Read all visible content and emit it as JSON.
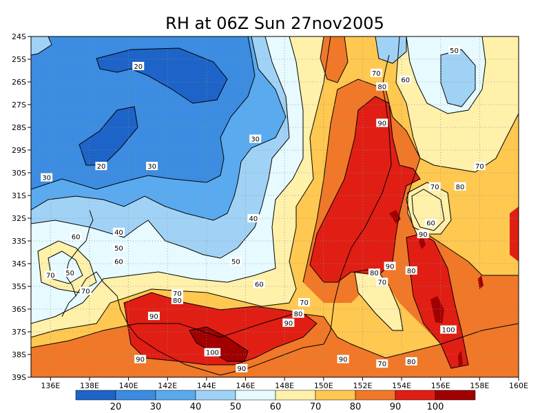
{
  "chart_data": {
    "type": "heatmap",
    "title": "RH at 06Z Sun 27nov2005",
    "xlabel": "",
    "ylabel": "",
    "x_ticks": [
      "136E",
      "138E",
      "140E",
      "142E",
      "144E",
      "146E",
      "148E",
      "150E",
      "152E",
      "154E",
      "156E",
      "158E",
      "160E"
    ],
    "y_ticks": [
      "24S",
      "25S",
      "26S",
      "27S",
      "28S",
      "29S",
      "30S",
      "31S",
      "32S",
      "33S",
      "34S",
      "35S",
      "36S",
      "37S",
      "38S",
      "39S"
    ],
    "xlim": [
      135,
      160
    ],
    "ylim": [
      -39,
      -24
    ],
    "grid": true,
    "colorbar": {
      "levels": [
        "20",
        "30",
        "40",
        "50",
        "60",
        "70",
        "80",
        "90",
        "100"
      ],
      "colors": [
        "#1e64c8",
        "#3c8ce1",
        "#5aaaf0",
        "#a0d2f5",
        "#e6faff",
        "#fff0aa",
        "#ffc850",
        "#f07828",
        "#e11e14",
        "#a00000"
      ]
    },
    "contour_labels": [
      {
        "text": "20",
        "lon": 140.5,
        "lat": -25.3
      },
      {
        "text": "20",
        "lon": 138.6,
        "lat": -29.7
      },
      {
        "text": "30",
        "lon": 135.8,
        "lat": -30.2
      },
      {
        "text": "30",
        "lon": 141.2,
        "lat": -29.7
      },
      {
        "text": "30",
        "lon": 146.5,
        "lat": -28.5
      },
      {
        "text": "40",
        "lon": 146.4,
        "lat": -32.0
      },
      {
        "text": "40",
        "lon": 139.5,
        "lat": -32.6
      },
      {
        "text": "50",
        "lon": 139.5,
        "lat": -33.3
      },
      {
        "text": "50",
        "lon": 145.5,
        "lat": -33.9
      },
      {
        "text": "50",
        "lon": 137.0,
        "lat": -34.4
      },
      {
        "text": "50",
        "lon": 156.7,
        "lat": -24.6
      },
      {
        "text": "60",
        "lon": 137.3,
        "lat": -32.8
      },
      {
        "text": "60",
        "lon": 139.5,
        "lat": -33.9
      },
      {
        "text": "60",
        "lon": 146.7,
        "lat": -34.9
      },
      {
        "text": "60",
        "lon": 154.2,
        "lat": -25.9
      },
      {
        "text": "60",
        "lon": 155.5,
        "lat": -32.2
      },
      {
        "text": "70",
        "lon": 136.0,
        "lat": -34.5
      },
      {
        "text": "70",
        "lon": 137.8,
        "lat": -35.2
      },
      {
        "text": "70",
        "lon": 142.5,
        "lat": -35.3
      },
      {
        "text": "70",
        "lon": 149.0,
        "lat": -35.7
      },
      {
        "text": "70",
        "lon": 152.7,
        "lat": -25.6
      },
      {
        "text": "70",
        "lon": 158.0,
        "lat": -29.7
      },
      {
        "text": "70",
        "lon": 155.7,
        "lat": -30.6
      },
      {
        "text": "70",
        "lon": 153.0,
        "lat": -34.8
      },
      {
        "text": "70",
        "lon": 153.0,
        "lat": -38.4
      },
      {
        "text": "80",
        "lon": 142.5,
        "lat": -35.6
      },
      {
        "text": "80",
        "lon": 148.7,
        "lat": -36.2
      },
      {
        "text": "80",
        "lon": 153.0,
        "lat": -26.2
      },
      {
        "text": "80",
        "lon": 157.0,
        "lat": -30.6
      },
      {
        "text": "80",
        "lon": 152.6,
        "lat": -34.4
      },
      {
        "text": "80",
        "lon": 154.5,
        "lat": -34.3
      },
      {
        "text": "80",
        "lon": 154.5,
        "lat": -38.3
      },
      {
        "text": "90",
        "lon": 141.3,
        "lat": -36.3
      },
      {
        "text": "90",
        "lon": 148.2,
        "lat": -36.6
      },
      {
        "text": "90",
        "lon": 153.0,
        "lat": -27.8
      },
      {
        "text": "90",
        "lon": 155.1,
        "lat": -32.7
      },
      {
        "text": "90",
        "lon": 153.4,
        "lat": -34.1
      },
      {
        "text": "90",
        "lon": 140.6,
        "lat": -38.2
      },
      {
        "text": "90",
        "lon": 145.8,
        "lat": -38.6
      },
      {
        "text": "90",
        "lon": 151.0,
        "lat": -38.2
      },
      {
        "text": "100",
        "lon": 144.3,
        "lat": -37.9
      },
      {
        "text": "100",
        "lon": 156.4,
        "lat": -36.9
      }
    ]
  }
}
